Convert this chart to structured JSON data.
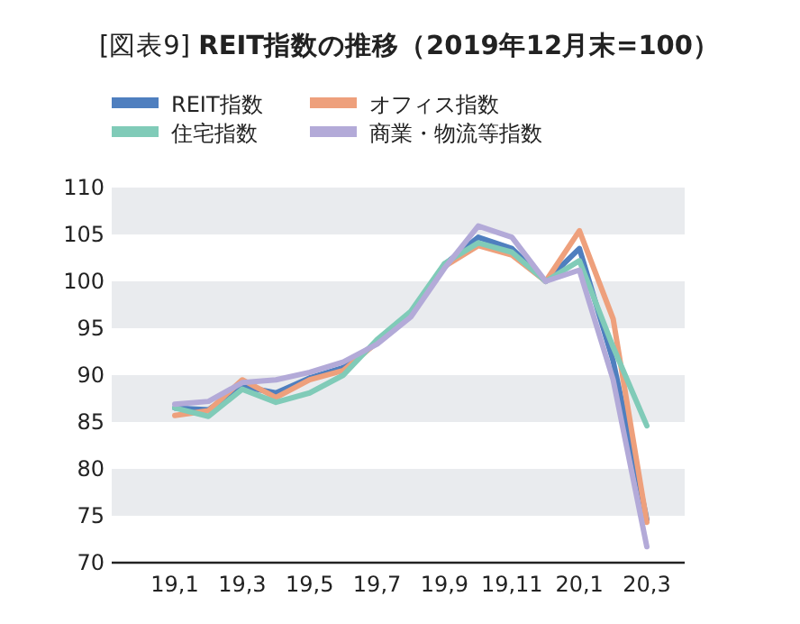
{
  "chart_data": {
    "type": "line",
    "title": "[図表9] **REIT指数の推移（2019年12月末=100）**",
    "categories": [
      "19,1",
      null,
      "19,3",
      null,
      "19,5",
      null,
      "19,7",
      null,
      "19,9",
      null,
      "19,11",
      null,
      "20,1",
      null,
      "20,3"
    ],
    "series": [
      {
        "name": "REIT指数",
        "color": "#4f7fbf",
        "values": [
          86.5,
          86.3,
          88.8,
          88.1,
          89.7,
          90.8,
          93.5,
          96.5,
          101.8,
          104.7,
          103.5,
          100,
          103.5,
          91.5,
          74.6
        ]
      },
      {
        "name": "オフィス指数",
        "color": "#eea07c",
        "values": [
          85.7,
          86.2,
          89.5,
          87.6,
          89.5,
          90.5,
          93.5,
          96.4,
          101.6,
          103.8,
          102.8,
          100,
          105.4,
          96.0,
          74.3
        ]
      },
      {
        "name": "住宅指数",
        "color": "#80cbb8",
        "values": [
          86.5,
          85.6,
          88.5,
          87.1,
          88.1,
          90.0,
          93.8,
          96.8,
          101.9,
          104.1,
          103.1,
          100,
          102.2,
          93.0,
          84.6
        ]
      },
      {
        "name": "商業・物流等指数",
        "color": "#b3aad8",
        "values": [
          86.9,
          87.2,
          89.2,
          89.5,
          90.3,
          91.4,
          93.3,
          96.2,
          101.4,
          105.9,
          104.7,
          100,
          101.2,
          89.5,
          71.7
        ]
      }
    ],
    "ylim": [
      70,
      110
    ],
    "yticks": [
      70,
      75,
      80,
      85,
      90,
      95,
      100,
      105,
      110
    ],
    "bands": [
      {
        "axis": "y",
        "from": 75,
        "to": 80,
        "color": "#e9ebee"
      },
      {
        "axis": "y",
        "from": 85,
        "to": 90,
        "color": "#e9ebee"
      },
      {
        "axis": "y",
        "from": 95,
        "to": 100,
        "color": "#e9ebee"
      },
      {
        "axis": "y",
        "from": 105,
        "to": 110,
        "color": "#e9ebee"
      }
    ],
    "legend": "top left",
    "marker": "none",
    "line_style": "solid",
    "grid": false
  }
}
